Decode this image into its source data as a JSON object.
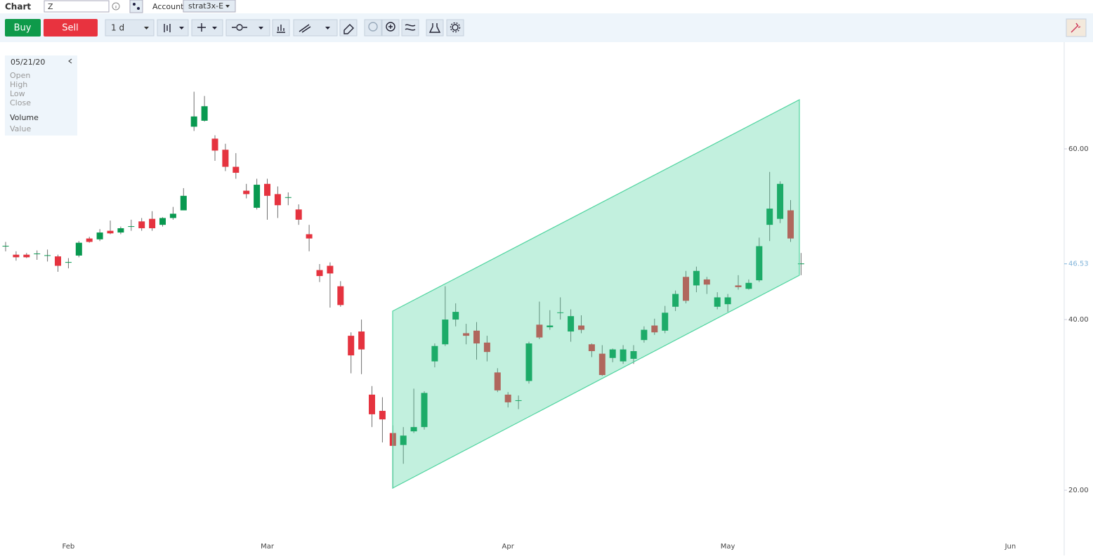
{
  "header": {
    "title": "Chart",
    "symbol": "Z",
    "account_label": "Account",
    "account": "strat3x-E"
  },
  "toolbar": {
    "buy": "Buy",
    "sell": "Sell",
    "interval": "1 d"
  },
  "legend_panel": {
    "date": "05/21/20",
    "fields": [
      "Open",
      "High",
      "Low",
      "Close"
    ],
    "volume": "Volume",
    "value": "Value"
  },
  "chart_data": {
    "type": "candlestick",
    "categories": [
      null,
      null,
      null,
      null,
      null,
      null,
      "Feb",
      null,
      null,
      null,
      null,
      null,
      null,
      null,
      null,
      null,
      null,
      null,
      null,
      null,
      null,
      null,
      null,
      null,
      null,
      "Mar",
      null,
      null,
      null,
      null,
      null,
      null,
      null,
      null,
      null,
      null,
      null,
      null,
      null,
      null,
      null,
      null,
      null,
      null,
      null,
      null,
      null,
      null,
      "Apr",
      null,
      null,
      null,
      null,
      null,
      null,
      null,
      null,
      null,
      null,
      null,
      null,
      null,
      null,
      null,
      null,
      null,
      null,
      null,
      null,
      "May",
      null,
      null,
      null,
      null,
      null,
      null,
      null,
      null,
      null,
      null,
      null,
      null,
      null,
      null,
      null,
      null,
      null,
      null,
      null,
      null,
      null,
      null,
      null,
      null,
      null,
      null,
      "Jun"
    ],
    "open": [
      48.6,
      47.6,
      47.6,
      47.7,
      47.5,
      47.4,
      46.7,
      47.5,
      49.5,
      49.4,
      50.4,
      50.2,
      50.9,
      51.5,
      51.8,
      51.1,
      51.9,
      52.8,
      62.6,
      63.3,
      61.2,
      59.9,
      57.9,
      55.1,
      53.1,
      55.9,
      54.7,
      54.3,
      52.9,
      50.0,
      45.8,
      46.3,
      43.9,
      38.1,
      38.6,
      31.2,
      29.3,
      26.7,
      25.3,
      26.9,
      27.4,
      35.1,
      37.1,
      40.0,
      38.4,
      38.7,
      37.3,
      33.8,
      31.2,
      30.5,
      32.8,
      39.4,
      39.1,
      40.8,
      38.6,
      39.3,
      37.1,
      36.0,
      35.5,
      35.1,
      35.4,
      37.6,
      39.3,
      38.7,
      41.5,
      45.0,
      44.0,
      44.7,
      41.5,
      41.8,
      44.0,
      43.6,
      44.6,
      51.1,
      51.8,
      52.8,
      46.53,
      null,
      null,
      null,
      null,
      null,
      null,
      null,
      null,
      null,
      null,
      null,
      null,
      null,
      null,
      null,
      null,
      null,
      null,
      null,
      null
    ],
    "high": [
      49.1,
      48.0,
      47.8,
      48.1,
      48.2,
      47.6,
      47.2,
      49.2,
      49.7,
      50.6,
      51.6,
      50.9,
      51.7,
      51.9,
      52.7,
      52.0,
      53.2,
      55.4,
      66.7,
      66.2,
      61.6,
      60.6,
      59.5,
      55.9,
      56.5,
      56.5,
      55.6,
      54.9,
      53.5,
      51.1,
      46.5,
      46.7,
      44.5,
      38.5,
      40.0,
      32.2,
      30.9,
      27.6,
      27.4,
      31.9,
      31.6,
      37.2,
      43.9,
      41.9,
      39.5,
      39.7,
      38.1,
      34.3,
      31.5,
      31.1,
      37.4,
      42.1,
      41.1,
      42.6,
      41.2,
      40.5,
      37.2,
      37.0,
      36.6,
      37.0,
      37.0,
      39.2,
      40.1,
      41.6,
      43.4,
      45.7,
      46.2,
      45.0,
      43.2,
      43.0,
      45.2,
      44.7,
      49.6,
      57.3,
      56.2,
      54.0,
      47.8,
      null,
      null,
      null,
      null,
      null,
      null,
      null,
      null,
      null,
      null,
      null,
      null,
      null,
      null,
      null,
      null,
      null,
      null,
      null,
      null
    ],
    "low": [
      48.0,
      46.9,
      47.2,
      47.0,
      46.8,
      45.6,
      46.0,
      47.3,
      49.0,
      49.2,
      50.0,
      50.0,
      50.4,
      50.4,
      50.4,
      50.9,
      51.7,
      52.8,
      62.1,
      63.2,
      58.6,
      57.4,
      56.5,
      54.2,
      52.9,
      51.7,
      51.9,
      53.4,
      51.1,
      48.0,
      44.4,
      41.4,
      41.5,
      33.7,
      33.6,
      27.4,
      25.6,
      20.2,
      23.1,
      26.7,
      27.1,
      34.4,
      36.9,
      39.2,
      37.1,
      35.3,
      35.1,
      31.5,
      29.7,
      29.5,
      32.5,
      37.7,
      38.8,
      40.0,
      37.4,
      38.4,
      35.6,
      33.4,
      35.0,
      34.8,
      34.8,
      37.3,
      38.2,
      38.4,
      41.0,
      41.9,
      43.2,
      43.0,
      41.2,
      40.9,
      43.5,
      43.5,
      44.4,
      49.2,
      51.3,
      49.1,
      45.2,
      null,
      null,
      null,
      null,
      null,
      null,
      null,
      null,
      null,
      null,
      null,
      null,
      null,
      null,
      null,
      null,
      null,
      null,
      null,
      null
    ],
    "close": [
      48.6,
      47.3,
      47.3,
      47.7,
      47.5,
      46.3,
      46.7,
      49.0,
      49.1,
      50.2,
      50.1,
      50.7,
      50.9,
      50.7,
      50.7,
      51.9,
      52.4,
      54.5,
      63.8,
      65.0,
      59.8,
      57.9,
      57.2,
      54.7,
      55.8,
      54.5,
      53.4,
      54.3,
      51.7,
      49.5,
      45.1,
      45.4,
      41.7,
      35.8,
      36.5,
      28.9,
      28.3,
      25.2,
      26.4,
      27.4,
      31.4,
      36.9,
      40.0,
      40.9,
      38.1,
      37.2,
      36.2,
      31.7,
      30.3,
      30.5,
      37.2,
      37.9,
      39.3,
      40.8,
      40.4,
      38.8,
      36.3,
      33.5,
      36.5,
      36.5,
      36.3,
      38.8,
      38.5,
      40.8,
      43.0,
      42.2,
      45.7,
      44.1,
      42.6,
      42.6,
      43.8,
      44.3,
      48.6,
      53.0,
      55.9,
      49.5,
      46.53,
      null,
      null,
      null,
      null,
      null,
      null,
      null,
      null,
      null,
      null,
      null,
      null,
      null,
      null,
      null,
      null,
      null,
      null,
      null,
      null
    ],
    "up_color": "#089950",
    "down_color": "#e5333f",
    "ylim": [
      14.49,
      72.51
    ],
    "yticks": [
      {
        "value": 20,
        "label": "20.00"
      },
      {
        "value": 40,
        "label": "40.00"
      },
      {
        "value": 60,
        "label": "60.00"
      }
    ],
    "last_price": 46.53,
    "last_price_label": "46.53"
  }
}
